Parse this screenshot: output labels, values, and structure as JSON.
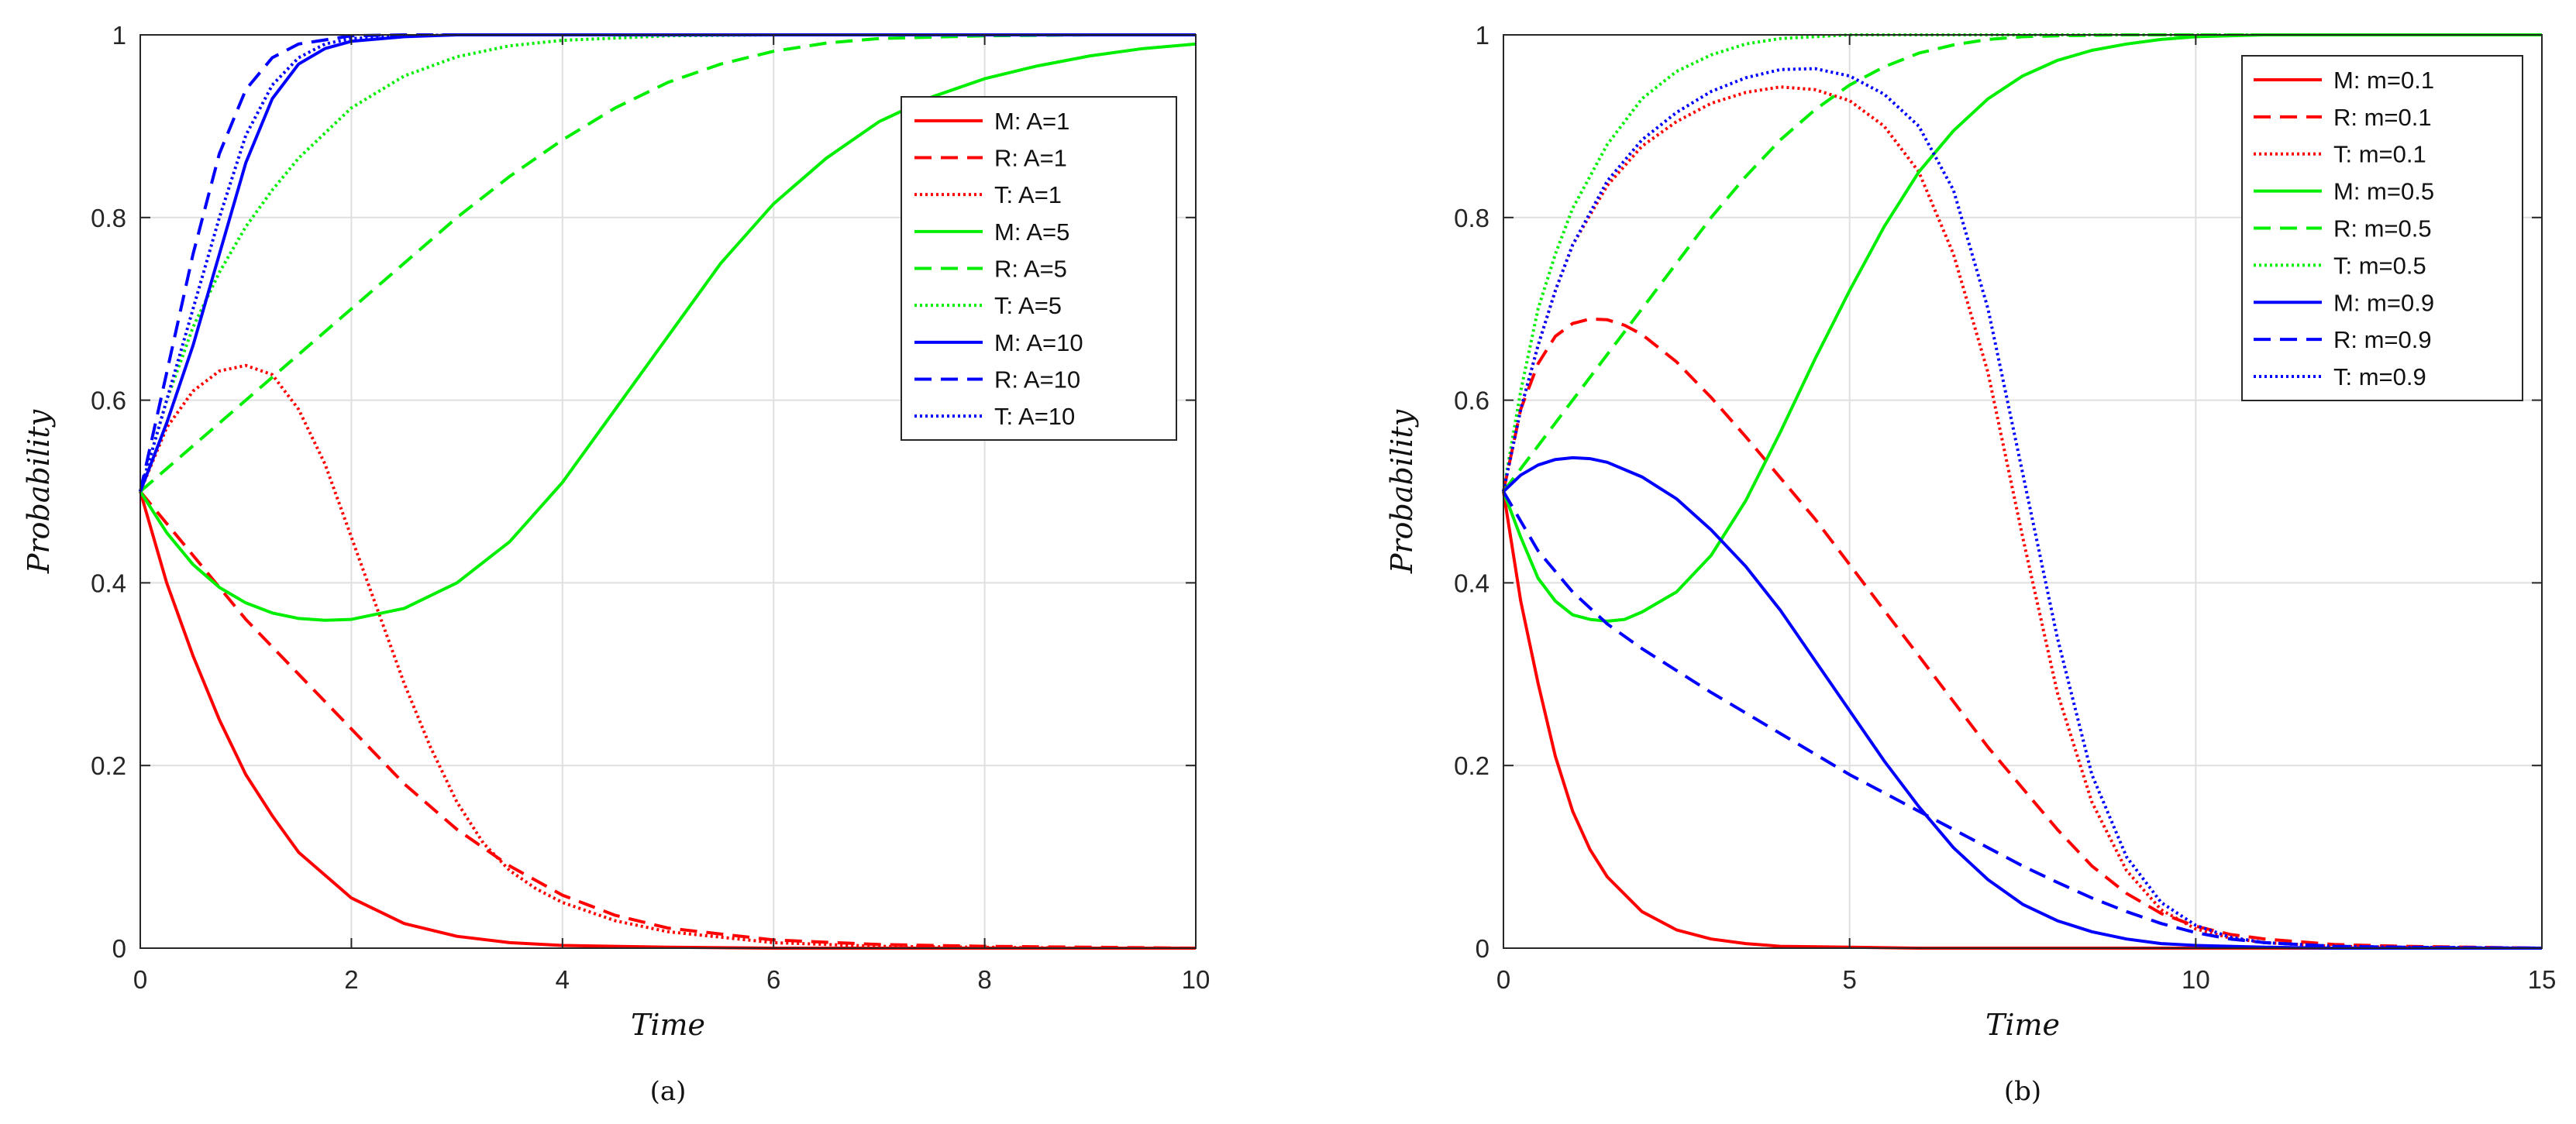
{
  "chart_data": [
    {
      "type": "line",
      "panel_label": "(a)",
      "title": "",
      "xlabel": "Time",
      "ylabel": "Probability",
      "xlim": [
        0,
        10
      ],
      "ylim": [
        0,
        1
      ],
      "xticks": [
        0,
        2,
        4,
        6,
        8,
        10
      ],
      "xtick_labels": [
        "0",
        "2",
        "4",
        "6",
        "8",
        "10"
      ],
      "yticks": [
        0,
        0.2,
        0.4,
        0.6,
        0.8,
        1
      ],
      "ytick_labels": [
        "0",
        "0.2",
        "0.4",
        "0.6",
        "0.8",
        "1"
      ],
      "grid": true,
      "legend_position": "top-right",
      "series": [
        {
          "name": "M: A=1",
          "color": "#ff0000",
          "style": "solid",
          "x": [
            0,
            0.25,
            0.5,
            0.75,
            1,
            1.25,
            1.5,
            2,
            2.5,
            3,
            3.5,
            4,
            5,
            6,
            7,
            8,
            9,
            10
          ],
          "y": [
            0.5,
            0.4,
            0.32,
            0.25,
            0.19,
            0.145,
            0.105,
            0.055,
            0.027,
            0.013,
            0.006,
            0.003,
            0.001,
            0,
            0,
            0,
            0,
            0
          ]
        },
        {
          "name": "R: A=1",
          "color": "#ff0000",
          "style": "dashed",
          "x": [
            0,
            0.5,
            1,
            1.5,
            2,
            2.5,
            3,
            3.5,
            4,
            4.5,
            5,
            6,
            7,
            8,
            9,
            10
          ],
          "y": [
            0.5,
            0.43,
            0.36,
            0.3,
            0.24,
            0.18,
            0.13,
            0.09,
            0.058,
            0.036,
            0.022,
            0.009,
            0.004,
            0.002,
            0.001,
            0
          ]
        },
        {
          "name": "T: A=1",
          "color": "#ff0000",
          "style": "dotted",
          "x": [
            0,
            0.25,
            0.5,
            0.75,
            1,
            1.25,
            1.5,
            1.75,
            2,
            2.25,
            2.5,
            2.75,
            3,
            3.25,
            3.5,
            3.75,
            4,
            4.5,
            5,
            6,
            7,
            8,
            9,
            10
          ],
          "y": [
            0.5,
            0.57,
            0.61,
            0.632,
            0.638,
            0.628,
            0.59,
            0.53,
            0.45,
            0.37,
            0.29,
            0.22,
            0.16,
            0.115,
            0.085,
            0.065,
            0.05,
            0.03,
            0.018,
            0.006,
            0.002,
            0.001,
            0,
            0
          ]
        },
        {
          "name": "M: A=5",
          "color": "#00ee00",
          "style": "solid",
          "x": [
            0,
            0.25,
            0.5,
            0.75,
            1,
            1.25,
            1.5,
            1.75,
            2,
            2.5,
            3,
            3.5,
            4,
            4.5,
            5,
            5.5,
            6,
            6.5,
            7,
            7.5,
            8,
            8.5,
            9,
            9.5,
            10
          ],
          "y": [
            0.5,
            0.455,
            0.42,
            0.395,
            0.378,
            0.367,
            0.361,
            0.359,
            0.36,
            0.372,
            0.4,
            0.445,
            0.51,
            0.59,
            0.67,
            0.75,
            0.815,
            0.865,
            0.905,
            0.932,
            0.952,
            0.966,
            0.977,
            0.985,
            0.99
          ]
        },
        {
          "name": "R: A=5",
          "color": "#00ee00",
          "style": "dashed",
          "x": [
            0,
            0.5,
            1,
            1.5,
            2,
            2.5,
            3,
            3.5,
            4,
            4.5,
            5,
            5.5,
            6,
            6.5,
            7,
            8,
            9,
            10
          ],
          "y": [
            0.5,
            0.55,
            0.6,
            0.65,
            0.7,
            0.75,
            0.8,
            0.845,
            0.885,
            0.92,
            0.948,
            0.968,
            0.982,
            0.991,
            0.996,
            0.999,
            1,
            1
          ]
        },
        {
          "name": "T: A=5",
          "color": "#00ee00",
          "style": "dotted",
          "x": [
            0,
            0.25,
            0.5,
            0.75,
            1,
            1.25,
            1.5,
            2,
            2.5,
            3,
            3.5,
            4,
            5,
            6,
            7,
            8,
            9,
            10
          ],
          "y": [
            0.5,
            0.6,
            0.68,
            0.74,
            0.79,
            0.83,
            0.865,
            0.92,
            0.955,
            0.976,
            0.988,
            0.994,
            0.999,
            1,
            1,
            1,
            1,
            1
          ]
        },
        {
          "name": "M: A=10",
          "color": "#0000ff",
          "style": "solid",
          "x": [
            0,
            0.25,
            0.5,
            0.75,
            1,
            1.25,
            1.5,
            1.75,
            2,
            2.5,
            3,
            4,
            5,
            6,
            7,
            8,
            9,
            10
          ],
          "y": [
            0.5,
            0.575,
            0.66,
            0.76,
            0.86,
            0.93,
            0.968,
            0.985,
            0.993,
            0.998,
            1,
            1,
            1,
            1,
            1,
            1,
            1,
            1
          ]
        },
        {
          "name": "R: A=10",
          "color": "#0000ff",
          "style": "dashed",
          "x": [
            0,
            0.25,
            0.5,
            0.75,
            1,
            1.25,
            1.5,
            2,
            2.5,
            3,
            4,
            5,
            6,
            7,
            8,
            9,
            10
          ],
          "y": [
            0.5,
            0.63,
            0.76,
            0.87,
            0.94,
            0.975,
            0.99,
            0.999,
            1,
            1,
            1,
            1,
            1,
            1,
            1,
            1,
            1
          ]
        },
        {
          "name": "T: A=10",
          "color": "#0000ff",
          "style": "dotted",
          "x": [
            0,
            0.25,
            0.5,
            0.75,
            1,
            1.25,
            1.5,
            1.75,
            2,
            2.5,
            3,
            4,
            5,
            6,
            7,
            8,
            9,
            10
          ],
          "y": [
            0.5,
            0.6,
            0.7,
            0.8,
            0.89,
            0.945,
            0.975,
            0.99,
            0.996,
            0.999,
            1,
            1,
            1,
            1,
            1,
            1,
            1,
            1
          ]
        }
      ]
    },
    {
      "type": "line",
      "panel_label": "(b)",
      "title": "",
      "xlabel": "Time",
      "ylabel": "Probability",
      "xlim": [
        0,
        15
      ],
      "ylim": [
        0,
        1
      ],
      "xticks": [
        0,
        5,
        10,
        15
      ],
      "xtick_labels": [
        "0",
        "5",
        "10",
        "15"
      ],
      "yticks": [
        0,
        0.2,
        0.4,
        0.6,
        0.8,
        1
      ],
      "ytick_labels": [
        "0",
        "0.2",
        "0.4",
        "0.6",
        "0.8",
        "1"
      ],
      "grid": true,
      "legend_position": "top-right",
      "series": [
        {
          "name": "M: m=0.1",
          "color": "#ff0000",
          "style": "solid",
          "x": [
            0,
            0.25,
            0.5,
            0.75,
            1,
            1.25,
            1.5,
            2,
            2.5,
            3,
            3.5,
            4,
            5,
            6,
            8,
            10,
            12,
            15
          ],
          "y": [
            0.5,
            0.38,
            0.29,
            0.21,
            0.15,
            0.108,
            0.078,
            0.04,
            0.02,
            0.01,
            0.005,
            0.002,
            0.001,
            0,
            0,
            0,
            0,
            0
          ]
        },
        {
          "name": "R: m=0.1",
          "color": "#ff0000",
          "style": "dashed",
          "x": [
            0,
            0.25,
            0.5,
            0.75,
            1,
            1.25,
            1.5,
            1.75,
            2,
            2.5,
            3,
            3.5,
            4,
            4.5,
            5,
            5.5,
            6,
            6.5,
            7,
            7.5,
            8,
            8.5,
            9,
            9.5,
            10,
            10.5,
            11,
            12,
            13,
            14,
            15
          ],
          "y": [
            0.5,
            0.59,
            0.64,
            0.67,
            0.684,
            0.689,
            0.688,
            0.682,
            0.672,
            0.642,
            0.603,
            0.56,
            0.515,
            0.47,
            0.42,
            0.37,
            0.32,
            0.27,
            0.22,
            0.175,
            0.13,
            0.09,
            0.06,
            0.038,
            0.024,
            0.015,
            0.01,
            0.004,
            0.002,
            0.001,
            0
          ]
        },
        {
          "name": "T: m=0.1",
          "color": "#ff0000",
          "style": "dotted",
          "x": [
            0,
            0.25,
            0.5,
            0.75,
            1,
            1.5,
            2,
            2.5,
            3,
            3.5,
            4,
            4.5,
            5,
            5.5,
            6,
            6.5,
            7,
            7.5,
            8,
            8.5,
            9,
            9.5,
            10,
            10.5,
            11,
            12,
            13,
            15
          ],
          "y": [
            0.5,
            0.59,
            0.66,
            0.72,
            0.77,
            0.835,
            0.878,
            0.905,
            0.925,
            0.937,
            0.943,
            0.94,
            0.928,
            0.9,
            0.85,
            0.76,
            0.63,
            0.45,
            0.28,
            0.16,
            0.085,
            0.042,
            0.021,
            0.011,
            0.006,
            0.002,
            0.001,
            0
          ]
        },
        {
          "name": "M: m=0.5",
          "color": "#00ee00",
          "style": "solid",
          "x": [
            0,
            0.25,
            0.5,
            0.75,
            1,
            1.25,
            1.5,
            1.75,
            2,
            2.5,
            3,
            3.5,
            4,
            4.5,
            5,
            5.5,
            6,
            6.5,
            7,
            7.5,
            8,
            8.5,
            9,
            9.5,
            10,
            11,
            12,
            13,
            15
          ],
          "y": [
            0.5,
            0.45,
            0.405,
            0.38,
            0.365,
            0.36,
            0.358,
            0.36,
            0.368,
            0.39,
            0.43,
            0.49,
            0.565,
            0.645,
            0.72,
            0.79,
            0.85,
            0.895,
            0.93,
            0.955,
            0.972,
            0.983,
            0.99,
            0.995,
            0.998,
            1,
            1,
            1,
            1
          ]
        },
        {
          "name": "R: m=0.5",
          "color": "#00ee00",
          "style": "dashed",
          "x": [
            0,
            0.5,
            1,
            1.5,
            2,
            2.5,
            3,
            3.5,
            4,
            4.5,
            5,
            5.5,
            6,
            6.5,
            7,
            7.5,
            8,
            9,
            10,
            12,
            15
          ],
          "y": [
            0.5,
            0.55,
            0.6,
            0.65,
            0.7,
            0.75,
            0.8,
            0.845,
            0.885,
            0.918,
            0.945,
            0.965,
            0.98,
            0.989,
            0.995,
            0.998,
            0.999,
            1,
            1,
            1,
            1
          ]
        },
        {
          "name": "T: m=0.5",
          "color": "#00ee00",
          "style": "dotted",
          "x": [
            0,
            0.25,
            0.5,
            0.75,
            1,
            1.5,
            2,
            2.5,
            3,
            3.5,
            4,
            5,
            6,
            8,
            10,
            12,
            15
          ],
          "y": [
            0.5,
            0.61,
            0.7,
            0.76,
            0.81,
            0.88,
            0.93,
            0.96,
            0.978,
            0.99,
            0.996,
            1,
            1,
            1,
            1,
            1,
            1
          ]
        },
        {
          "name": "M: m=0.9",
          "color": "#0000ff",
          "style": "solid",
          "x": [
            0,
            0.25,
            0.5,
            0.75,
            1,
            1.25,
            1.5,
            2,
            2.5,
            3,
            3.5,
            4,
            4.5,
            5,
            5.5,
            6,
            6.5,
            7,
            7.5,
            8,
            8.5,
            9,
            9.5,
            10,
            11,
            12,
            15
          ],
          "y": [
            0.5,
            0.518,
            0.529,
            0.535,
            0.537,
            0.536,
            0.532,
            0.516,
            0.492,
            0.458,
            0.418,
            0.37,
            0.315,
            0.26,
            0.205,
            0.155,
            0.11,
            0.075,
            0.048,
            0.03,
            0.018,
            0.01,
            0.005,
            0.003,
            0.001,
            0,
            0
          ]
        },
        {
          "name": "R: m=0.9",
          "color": "#0000ff",
          "style": "dashed",
          "x": [
            0,
            0.5,
            1,
            1.5,
            2,
            3,
            4,
            5,
            6,
            7,
            7.5,
            8,
            8.5,
            9,
            9.5,
            10,
            10.5,
            11,
            12,
            13,
            15
          ],
          "y": [
            0.5,
            0.435,
            0.39,
            0.355,
            0.328,
            0.28,
            0.235,
            0.19,
            0.15,
            0.11,
            0.09,
            0.072,
            0.055,
            0.04,
            0.027,
            0.017,
            0.01,
            0.006,
            0.002,
            0.001,
            0
          ]
        },
        {
          "name": "T: m=0.9",
          "color": "#0000ff",
          "style": "dotted",
          "x": [
            0,
            0.25,
            0.5,
            0.75,
            1,
            1.5,
            2,
            2.5,
            3,
            3.5,
            4,
            4.5,
            5,
            5.5,
            6,
            6.5,
            7,
            7.5,
            8,
            8.5,
            9,
            9.5,
            10,
            10.5,
            11,
            12,
            13,
            15
          ],
          "y": [
            0.5,
            0.59,
            0.66,
            0.72,
            0.77,
            0.84,
            0.885,
            0.915,
            0.938,
            0.953,
            0.962,
            0.963,
            0.955,
            0.935,
            0.9,
            0.83,
            0.7,
            0.52,
            0.34,
            0.19,
            0.1,
            0.05,
            0.025,
            0.012,
            0.006,
            0.002,
            0.001,
            0
          ]
        }
      ]
    }
  ]
}
